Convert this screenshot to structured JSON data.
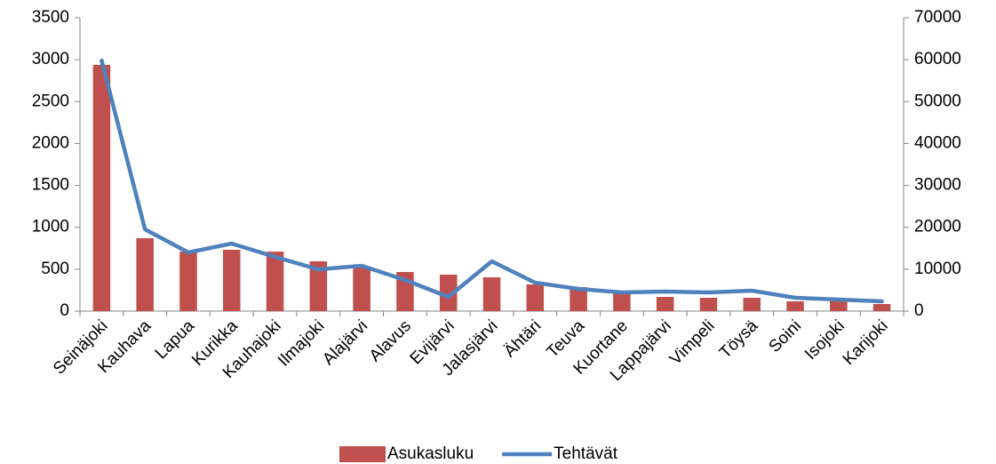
{
  "chart_data": {
    "type": "bar-line",
    "categories": [
      "Seinäjoki",
      "Kauhava",
      "Lapua",
      "Kurikka",
      "Kauhajoki",
      "Ilmajoki",
      "Alajärvi",
      "Alavus",
      "Evijärvi",
      "Jalasjärvi",
      "Ähtäri",
      "Teuva",
      "Kuortane",
      "Lappajärvi",
      "Vimpeli",
      "Töysä",
      "Soini",
      "Isojoki",
      "Karijoki"
    ],
    "series": [
      {
        "name": "Asukasluku",
        "type": "bar",
        "axis": "y2",
        "color": "#c0504d",
        "values": [
          58760,
          17400,
          14200,
          14640,
          14200,
          11880,
          10600,
          9330,
          8700,
          8060,
          6360,
          5730,
          4240,
          3390,
          3180,
          3180,
          2330,
          2760,
          1700
        ]
      },
      {
        "name": "Tehtävät",
        "type": "line",
        "axis": "y",
        "color": "#4f81bd",
        "values": [
          2990,
          976,
          700,
          806,
          647,
          498,
          541,
          371,
          170,
          594,
          339,
          265,
          223,
          233,
          223,
          244,
          159,
          138,
          117
        ]
      }
    ],
    "ylim": [
      0,
      3500
    ],
    "yticks": [
      0,
      500,
      1000,
      1500,
      2000,
      2500,
      3000,
      3500
    ],
    "y2lim": [
      0,
      70000
    ],
    "y2ticks": [
      0,
      10000,
      20000,
      30000,
      40000,
      50000,
      60000,
      70000
    ],
    "grid": false,
    "legend": "bottom"
  }
}
